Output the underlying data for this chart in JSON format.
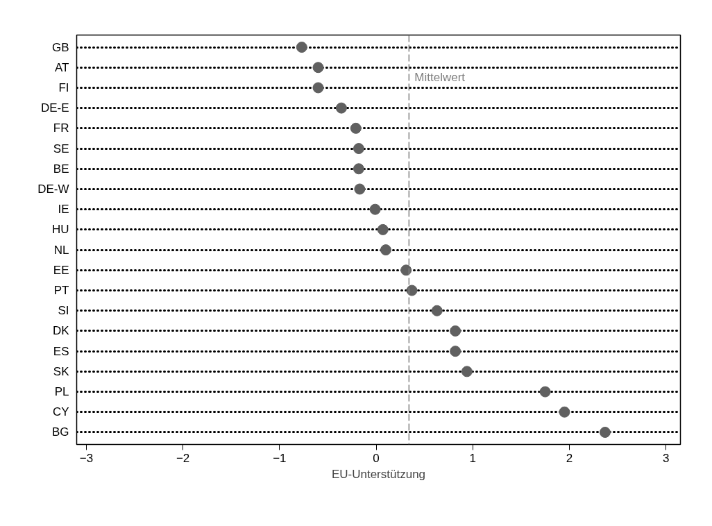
{
  "chart_data": {
    "type": "scatter",
    "xlabel": "EU-Unterstützung",
    "categories": [
      "GB",
      "AT",
      "FI",
      "DE-E",
      "FR",
      "SE",
      "BE",
      "DE-W",
      "IE",
      "HU",
      "NL",
      "EE",
      "PT",
      "SI",
      "DK",
      "ES",
      "SK",
      "PL",
      "CY",
      "BG"
    ],
    "values": [
      -0.77,
      -0.6,
      -0.6,
      -0.36,
      -0.21,
      -0.18,
      -0.18,
      -0.17,
      -0.01,
      0.07,
      0.1,
      0.31,
      0.37,
      0.63,
      0.82,
      0.82,
      0.94,
      1.75,
      1.95,
      2.37
    ],
    "color": "#606060",
    "marker": "circle",
    "orientation": "horizontal",
    "xlim": [
      -3.1,
      3.15
    ],
    "xticks": [
      -3,
      -2,
      -1,
      0,
      1,
      2,
      3
    ],
    "grid": "y",
    "ref_lines": [
      {
        "axis": "x",
        "value": 0.34,
        "label": "Mittelwert",
        "color": "#808080",
        "line_style": "dashed"
      }
    ]
  }
}
